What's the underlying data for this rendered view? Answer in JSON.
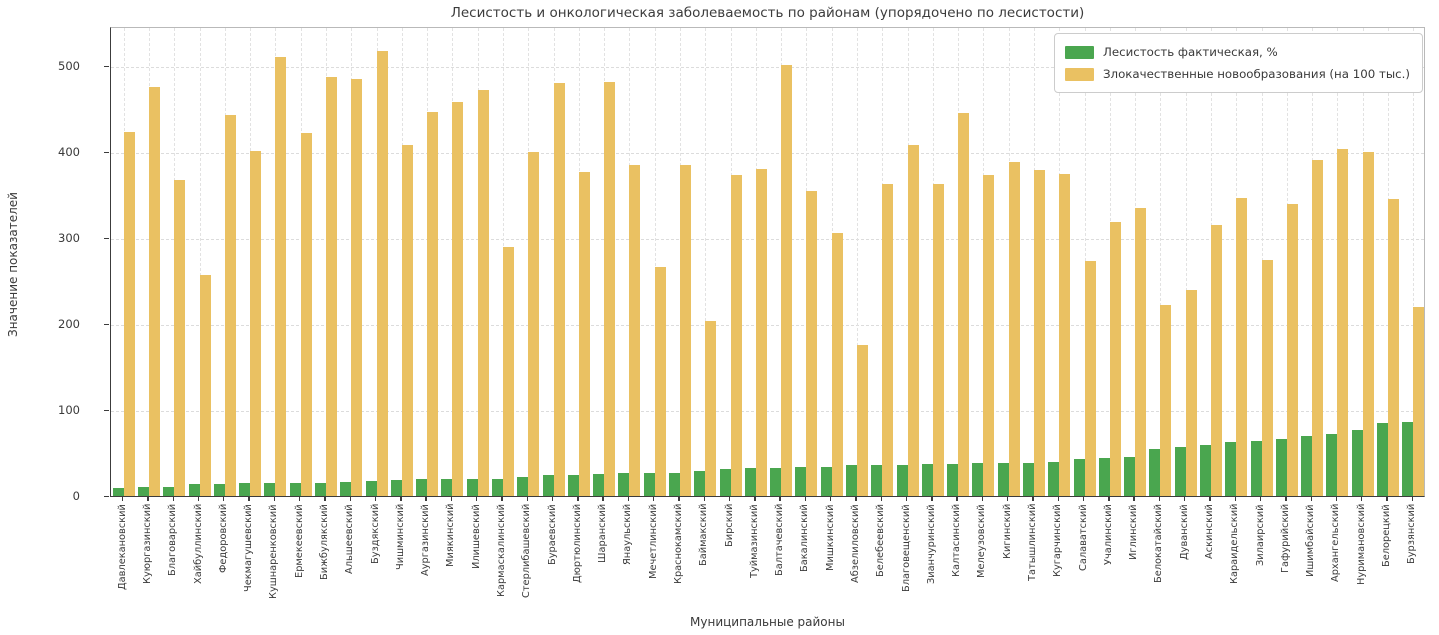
{
  "title": "Лесистость и онкологическая заболеваемость по районам (упорядочено по лесистости)",
  "xlabel": "Муниципальные районы",
  "ylabel": "Значение показателей",
  "legend": {
    "items": [
      {
        "label": "Лесистость фактическая, %",
        "color": "#4aa64f"
      },
      {
        "label": "Злокачественные новообразования (на 100 тыс.)",
        "color": "#eac162"
      }
    ]
  },
  "colors": {
    "forest_green": "#4aa64f",
    "cancer_yellow": "#eac162",
    "grid": "#dcdcdc",
    "text": "#3a3a3a"
  },
  "yticks": [
    0,
    100,
    200,
    300,
    400,
    500
  ],
  "chart_data": {
    "type": "bar",
    "title": "Лесистость и онкологическая заболеваемость по районам (упорядочено по лесистости)",
    "xlabel": "Муниципальные районы",
    "ylabel": "Значение показателей",
    "ylim": [
      0,
      546
    ],
    "grid": true,
    "legend_position": "upper right",
    "categories": [
      "Давлекановский",
      "Куюргазинский",
      "Благоварский",
      "Хайбуллинский",
      "Федоровский",
      "Чекмагушевский",
      "Кушнаренковский",
      "Ермекеевский",
      "Бижбулякский",
      "Альшеевский",
      "Буздякский",
      "Чишминский",
      "Аургазинский",
      "Миякинский",
      "Илишевский",
      "Кармаскалинский",
      "Стерлибашевский",
      "Бураевский",
      "Дюртюлинский",
      "Шаранский",
      "Янаульский",
      "Мечетлинский",
      "Краснокамский",
      "Баймакский",
      "Бирский",
      "Туймазинский",
      "Балтачевский",
      "Бакалинский",
      "Мишкинский",
      "Абзелиловский",
      "Белебеевский",
      "Благовещенский",
      "Зианчуринский",
      "Калтасинский",
      "Мелеузовский",
      "Кигинский",
      "Татышлинский",
      "Кугарчинский",
      "Салаватский",
      "Учалинский",
      "Иглинский",
      "Белокатайский",
      "Дуванский",
      "Аскинский",
      "Караидельский",
      "Зилаирский",
      "Гафурийский",
      "Ишимбайский",
      "Архангельский",
      "Нуримановский",
      "Белорецкий",
      "Бурзянский"
    ],
    "series": [
      {
        "name": "Лесистость фактическая, %",
        "color": "#4aa64f",
        "values": [
          9.6,
          10.0,
          10.3,
          13.6,
          14.0,
          14.6,
          15.0,
          15.2,
          15.5,
          16.7,
          17.8,
          18.6,
          19.4,
          19.6,
          19.8,
          20.1,
          21.7,
          24.0,
          24.8,
          25.6,
          26.2,
          26.5,
          27.1,
          28.7,
          31.0,
          32.2,
          32.8,
          33.3,
          34.1,
          36.0,
          36.4,
          36.6,
          37.2,
          37.4,
          38.0,
          38.2,
          38.8,
          40.0,
          42.6,
          44.2,
          45.7,
          54.3,
          57.4,
          59.7,
          62.4,
          64.0,
          65.9,
          69.4,
          72.1,
          76.7,
          85.3,
          85.7
        ]
      },
      {
        "name": "Злокачественные новообразования (на 100 тыс.)",
        "color": "#eac162",
        "values": [
          423,
          476,
          368,
          257,
          443,
          401,
          510,
          422,
          487,
          485,
          517,
          408,
          447,
          458,
          472,
          290,
          400,
          480,
          377,
          481,
          385,
          266,
          385,
          203,
          373,
          380,
          501,
          355,
          306,
          176,
          363,
          408,
          363,
          445,
          373,
          388,
          379,
          375,
          273,
          319,
          335,
          222,
          240,
          315,
          346,
          274,
          339,
          391,
          403,
          400,
          345,
          220
        ]
      }
    ]
  }
}
